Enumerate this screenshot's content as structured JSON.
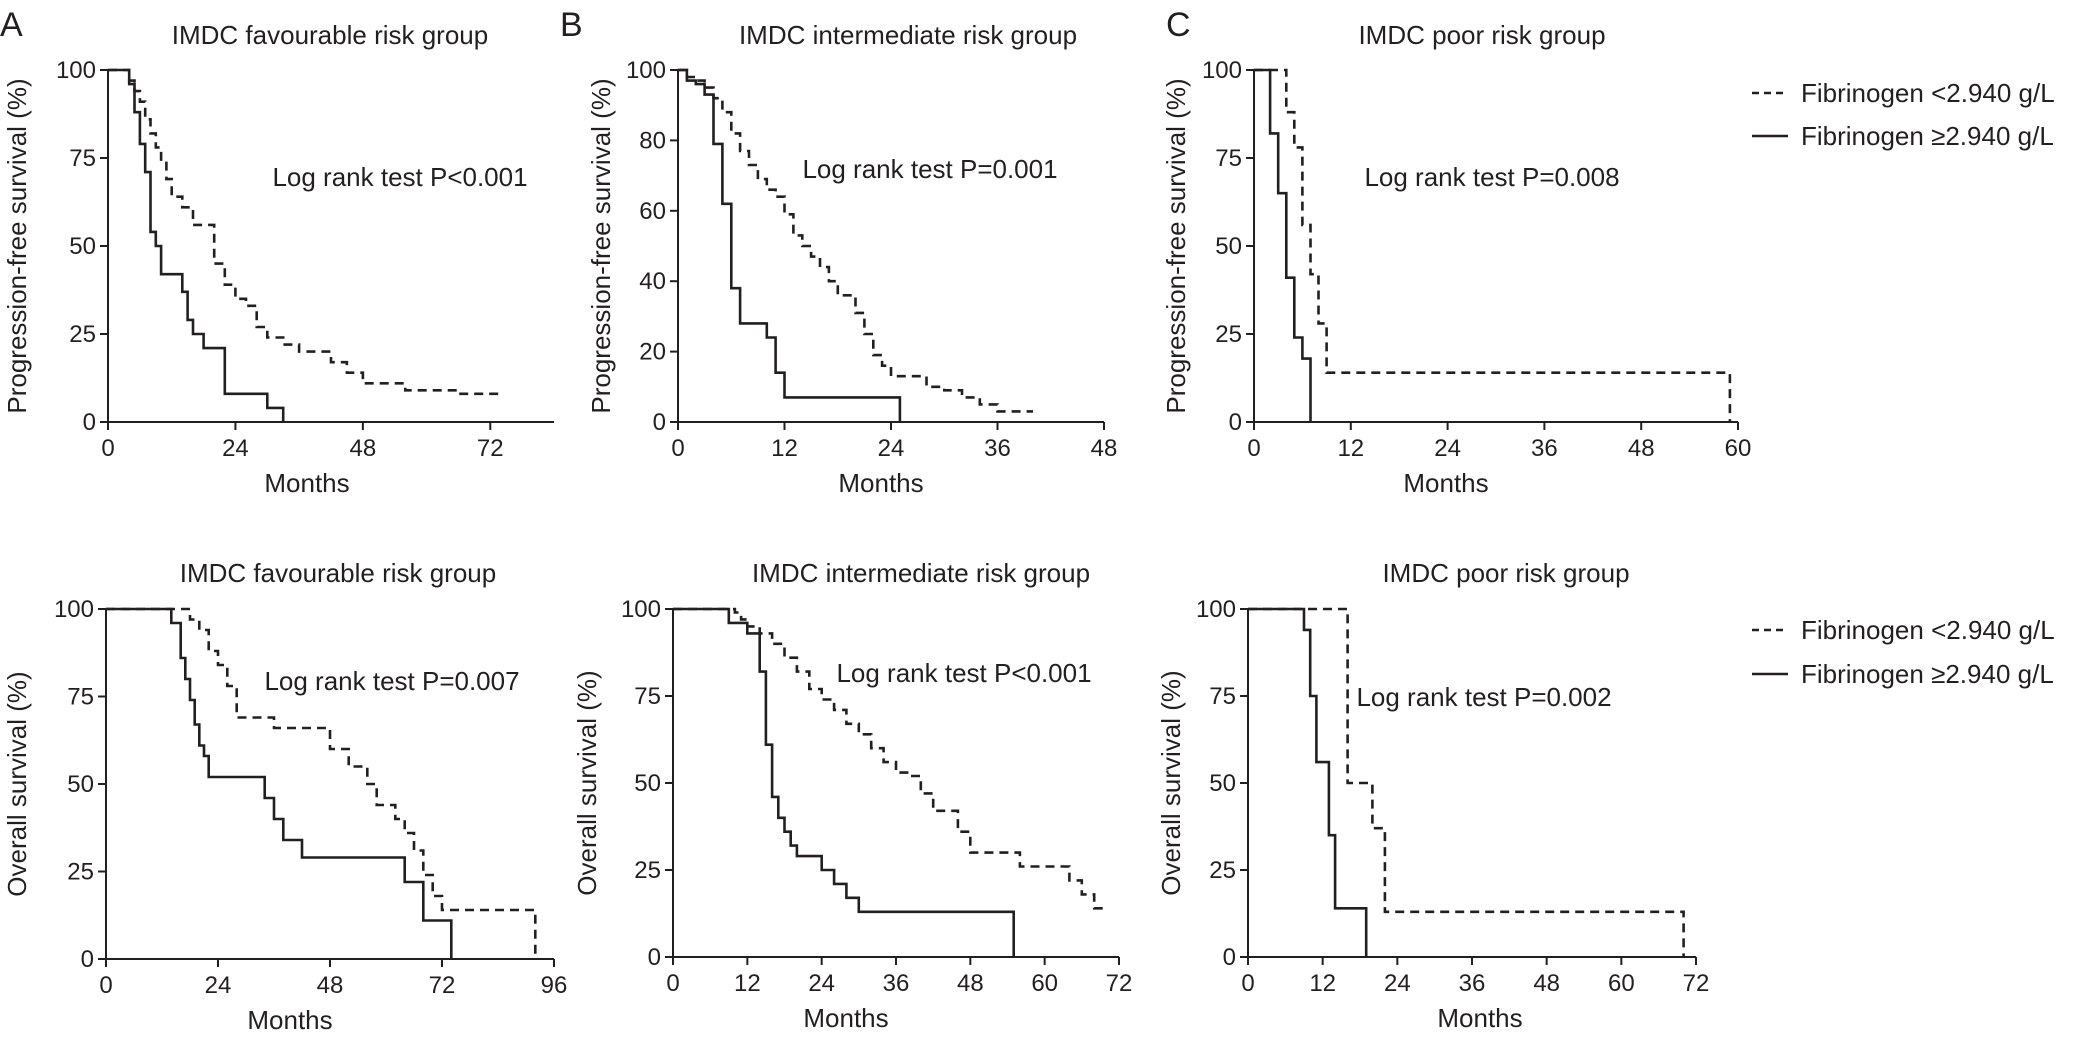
{
  "panel_letters": [
    "A",
    "B",
    "C"
  ],
  "legend": {
    "items": [
      {
        "label": "Fibrinogen <2.940 g/L",
        "style": "dashed"
      },
      {
        "label": "Fibrinogen ≥2.940 g/L",
        "style": "solid"
      }
    ]
  },
  "chart_data": [
    {
      "type": "line",
      "title": "IMDC favourable risk group",
      "xlabel": "Months",
      "ylabel": "Progression-free survival (%)",
      "xlim": [
        0,
        84
      ],
      "ylim": [
        0,
        100
      ],
      "xticks": [
        0,
        24,
        48,
        72
      ],
      "yticks": [
        0,
        25,
        50,
        75,
        100
      ],
      "annotation": "Log rank test P<0.001",
      "series": [
        {
          "name": "Fibrinogen <2.940 g/L",
          "style": "dashed",
          "x": [
            0,
            4,
            5,
            6,
            7,
            8,
            9,
            10,
            11,
            12,
            14,
            16,
            19,
            20,
            22,
            24,
            26,
            28,
            30,
            33,
            36,
            39,
            42,
            45,
            48,
            52,
            56,
            62,
            66,
            74
          ],
          "y": [
            100,
            97,
            94,
            91,
            86,
            82,
            78,
            74,
            69,
            64,
            61,
            56,
            56,
            45,
            39,
            35,
            33,
            27,
            24,
            22,
            20,
            20,
            17,
            14,
            11,
            11,
            9,
            9,
            8,
            8
          ]
        },
        {
          "name": "Fibrinogen ≥2.940 g/L",
          "style": "solid",
          "x": [
            0,
            4,
            5,
            6,
            7,
            8,
            9,
            10,
            12,
            14,
            15,
            16,
            18,
            20,
            22,
            24,
            26,
            28,
            30,
            33
          ],
          "y": [
            100,
            96,
            88,
            79,
            71,
            54,
            50,
            42,
            42,
            37,
            29,
            25,
            21,
            21,
            8,
            8,
            8,
            8,
            4,
            0
          ]
        }
      ]
    },
    {
      "type": "line",
      "title": "IMDC intermediate risk group",
      "xlabel": "Months",
      "ylabel": "Progression-free survival (%)",
      "xlim": [
        0,
        48
      ],
      "ylim": [
        0,
        100
      ],
      "xticks": [
        0,
        12,
        24,
        36,
        48
      ],
      "yticks": [
        0,
        20,
        40,
        60,
        80,
        100
      ],
      "annotation": "Log rank test P=0.001",
      "series": [
        {
          "name": "Fibrinogen <2.940 g/L",
          "style": "dashed",
          "x": [
            0,
            1,
            2,
            3,
            4,
            5,
            6,
            7,
            8,
            9,
            10,
            11,
            12,
            13,
            14,
            15,
            16,
            17,
            18,
            19,
            20,
            21,
            22,
            23,
            24,
            26,
            28,
            30,
            32,
            34,
            36,
            38,
            40
          ],
          "y": [
            100,
            98,
            97,
            95,
            92,
            88,
            82,
            77,
            73,
            69,
            66,
            64,
            59,
            53,
            50,
            47,
            44,
            40,
            36,
            36,
            31,
            25,
            19,
            16,
            13,
            13,
            10,
            9,
            7,
            5,
            3,
            3,
            3
          ]
        },
        {
          "name": "Fibrinogen ≥2.940 g/L",
          "style": "solid",
          "x": [
            0,
            1,
            2,
            3,
            4,
            5,
            6,
            7,
            8,
            9,
            10,
            11,
            12,
            14,
            16,
            18,
            20,
            22,
            24,
            25
          ],
          "y": [
            100,
            97,
            96,
            93,
            79,
            62,
            38,
            28,
            28,
            28,
            24,
            14,
            7,
            7,
            7,
            7,
            7,
            7,
            7,
            0
          ]
        }
      ]
    },
    {
      "type": "line",
      "title": "IMDC poor risk group",
      "xlabel": "Months",
      "ylabel": "Progression-free survival (%)",
      "xlim": [
        0,
        60
      ],
      "ylim": [
        0,
        100
      ],
      "xticks": [
        0,
        12,
        24,
        36,
        48,
        60
      ],
      "yticks": [
        0,
        25,
        50,
        75,
        100
      ],
      "annotation": "Log rank test P=0.008",
      "series": [
        {
          "name": "Fibrinogen <2.940 g/L",
          "style": "dashed",
          "x": [
            0,
            4,
            5,
            6,
            7,
            8,
            9,
            12,
            24,
            36,
            48,
            59
          ],
          "y": [
            100,
            88,
            78,
            56,
            42,
            28,
            14,
            14,
            14,
            14,
            14,
            0
          ]
        },
        {
          "name": "Fibrinogen ≥2.940 g/L",
          "style": "solid",
          "x": [
            0,
            2,
            3,
            4,
            5,
            6,
            7
          ],
          "y": [
            100,
            82,
            65,
            41,
            24,
            18,
            0
          ]
        }
      ]
    },
    {
      "type": "line",
      "title": "IMDC favourable risk group",
      "xlabel": "Months",
      "ylabel": "Overall survival (%)",
      "xlim": [
        0,
        96
      ],
      "ylim": [
        0,
        100
      ],
      "xticks": [
        0,
        24,
        48,
        72,
        96
      ],
      "yticks": [
        0,
        25,
        50,
        75,
        100
      ],
      "annotation": "Log rank test P=0.007",
      "series": [
        {
          "name": "Fibrinogen <2.940 g/L",
          "style": "dashed",
          "x": [
            0,
            18,
            20,
            22,
            24,
            26,
            28,
            30,
            34,
            36,
            40,
            44,
            48,
            52,
            54,
            56,
            58,
            60,
            62,
            64,
            66,
            68,
            70,
            72,
            80,
            88,
            92
          ],
          "y": [
            100,
            97,
            94,
            88,
            84,
            78,
            69,
            69,
            69,
            66,
            66,
            66,
            60,
            55,
            55,
            50,
            44,
            44,
            40,
            36,
            31,
            24,
            18,
            14,
            14,
            14,
            0
          ]
        },
        {
          "name": "Fibrinogen ≥2.940 g/L",
          "style": "solid",
          "x": [
            0,
            14,
            16,
            17,
            18,
            19,
            20,
            21,
            22,
            24,
            28,
            32,
            34,
            36,
            38,
            42,
            50,
            58,
            64,
            68,
            72,
            74
          ],
          "y": [
            100,
            96,
            86,
            80,
            74,
            67,
            61,
            58,
            52,
            52,
            52,
            52,
            46,
            40,
            34,
            29,
            29,
            29,
            22,
            11,
            11,
            0
          ]
        }
      ]
    },
    {
      "type": "line",
      "title": "IMDC intermediate risk group",
      "xlabel": "Months",
      "ylabel": "Overall survival (%)",
      "xlim": [
        0,
        72
      ],
      "ylim": [
        0,
        100
      ],
      "xticks": [
        0,
        12,
        24,
        36,
        48,
        60,
        72
      ],
      "yticks": [
        0,
        25,
        50,
        75,
        100
      ],
      "annotation": "Log rank test P<0.001",
      "series": [
        {
          "name": "Fibrinogen <2.940 g/L",
          "style": "dashed",
          "x": [
            0,
            10,
            11,
            12,
            14,
            16,
            18,
            20,
            22,
            24,
            26,
            28,
            30,
            32,
            34,
            36,
            38,
            40,
            42,
            44,
            46,
            48,
            50,
            52,
            54,
            56,
            58,
            60,
            62,
            64,
            66,
            68,
            70
          ],
          "y": [
            100,
            99,
            97,
            95,
            93,
            90,
            86,
            82,
            77,
            74,
            71,
            67,
            64,
            60,
            56,
            53,
            52,
            47,
            42,
            42,
            36,
            30,
            30,
            30,
            30,
            26,
            26,
            26,
            26,
            22,
            18,
            14,
            14
          ]
        },
        {
          "name": "Fibrinogen ≥2.940 g/L",
          "style": "solid",
          "x": [
            0,
            9,
            12,
            14,
            15,
            16,
            17,
            18,
            19,
            20,
            22,
            24,
            25,
            26,
            28,
            30,
            36,
            42,
            48,
            54,
            55
          ],
          "y": [
            100,
            96,
            93,
            82,
            61,
            46,
            40,
            36,
            32,
            29,
            29,
            25,
            25,
            21,
            17,
            13,
            13,
            13,
            13,
            13,
            0
          ]
        }
      ]
    },
    {
      "type": "line",
      "title": "IMDC poor risk group",
      "xlabel": "Months",
      "ylabel": "Overall survival (%)",
      "xlim": [
        0,
        72
      ],
      "ylim": [
        0,
        100
      ],
      "xticks": [
        0,
        12,
        24,
        36,
        48,
        60,
        72
      ],
      "yticks": [
        0,
        25,
        50,
        75,
        100
      ],
      "annotation": "Log rank test P=0.002",
      "series": [
        {
          "name": "Fibrinogen <2.940 g/L",
          "style": "dashed",
          "x": [
            0,
            16,
            18,
            20,
            22,
            24,
            36,
            48,
            60,
            70
          ],
          "y": [
            100,
            50,
            50,
            37,
            13,
            13,
            13,
            13,
            13,
            0
          ]
        },
        {
          "name": "Fibrinogen ≥2.940 g/L",
          "style": "solid",
          "x": [
            0,
            9,
            10,
            11,
            13,
            14,
            16,
            18,
            19
          ],
          "y": [
            100,
            94,
            75,
            56,
            35,
            14,
            14,
            14,
            0
          ]
        }
      ]
    }
  ]
}
